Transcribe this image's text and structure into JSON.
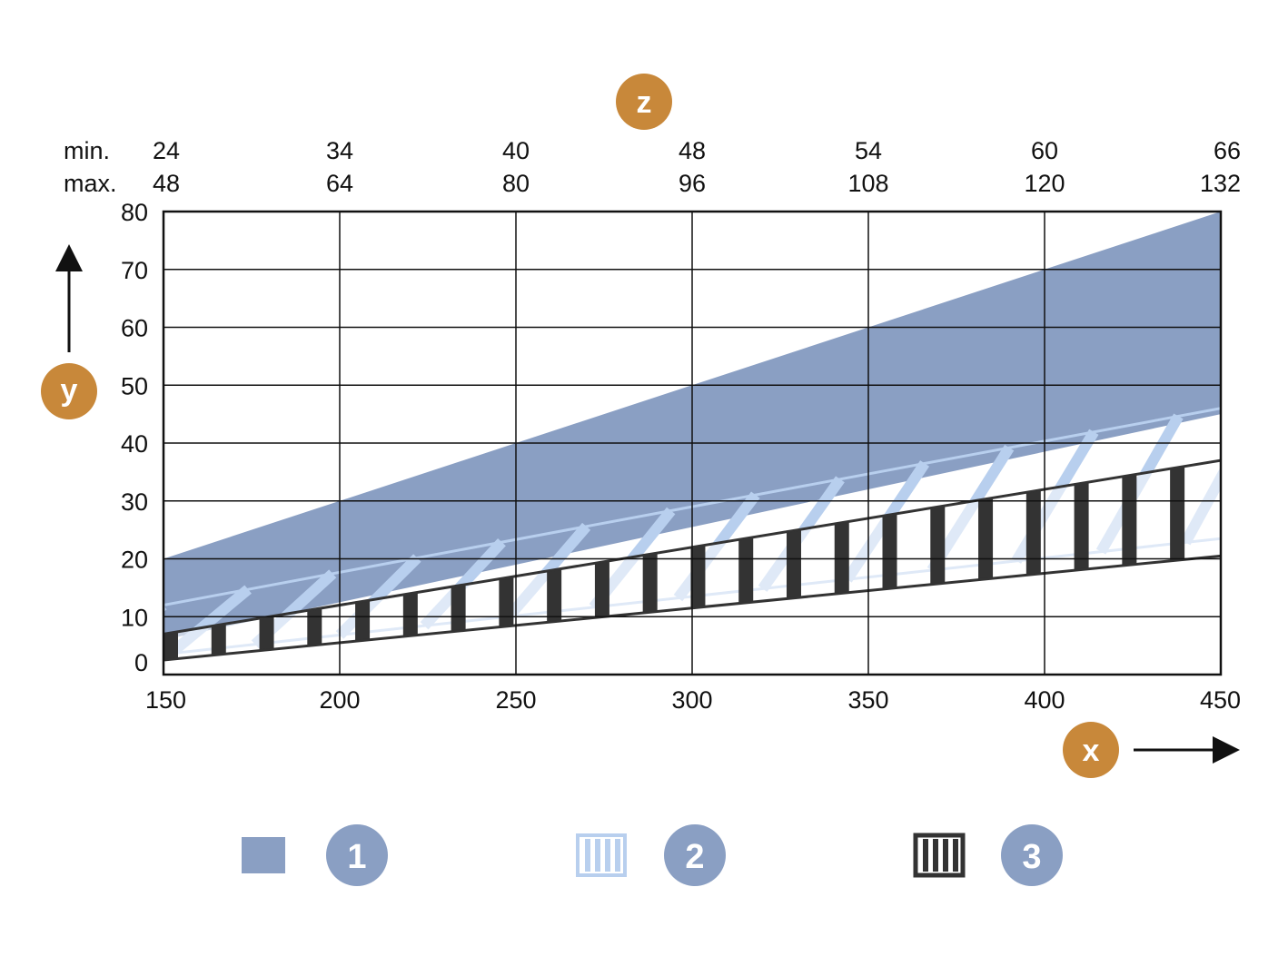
{
  "colors": {
    "band1": "#8a9fc3",
    "band2": "#b8cfee",
    "band3": "#333333",
    "badge_orange": "#c8883a",
    "badge_blue": "#8a9fc3",
    "grid": "#111111"
  },
  "axis_badges": {
    "x": "x",
    "y": "y",
    "z": "z"
  },
  "top_scale": {
    "min_label": "min.",
    "max_label": "max.",
    "min": [
      "24",
      "34",
      "40",
      "48",
      "54",
      "60",
      "66"
    ],
    "max": [
      "48",
      "64",
      "80",
      "96",
      "108",
      "120",
      "132"
    ]
  },
  "legend": [
    {
      "number": "1",
      "swatch": "solid"
    },
    {
      "number": "2",
      "swatch": "light-vertical-stripes"
    },
    {
      "number": "3",
      "swatch": "dark-vertical-stripes"
    }
  ],
  "chart_data": {
    "type": "area",
    "x_ticks": [
      "150",
      "200",
      "250",
      "300",
      "350",
      "400",
      "450"
    ],
    "y_ticks": [
      "0",
      "10",
      "20",
      "30",
      "40",
      "50",
      "60",
      "70",
      "80"
    ],
    "xlim": [
      150,
      450
    ],
    "ylim": [
      0,
      80
    ],
    "grid": true,
    "series": [
      {
        "name": "1",
        "style": "solid",
        "x": [
          150,
          450
        ],
        "lower": [
          6,
          45
        ],
        "upper": [
          20,
          80
        ]
      },
      {
        "name": "2",
        "style": "light-stripes",
        "x": [
          150,
          450
        ],
        "lower": [
          3.5,
          23.5
        ],
        "upper": [
          12,
          46
        ]
      },
      {
        "name": "3",
        "style": "dark-stripes",
        "x": [
          150,
          450
        ],
        "lower": [
          2.5,
          20.5
        ],
        "upper": [
          7,
          37
        ]
      }
    ]
  }
}
